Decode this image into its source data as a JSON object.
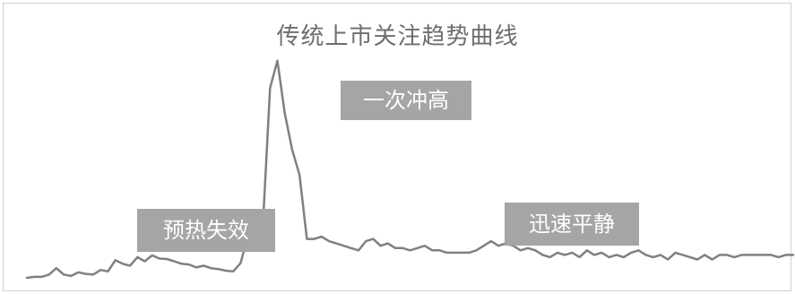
{
  "chart_data": {
    "type": "line",
    "title": "传统上市关注趋势曲线",
    "xlabel": "",
    "ylabel": "",
    "x_range": [
      0,
      104
    ],
    "ylim": [
      0,
      100
    ],
    "grid": false,
    "line_color": "#808080",
    "series": [
      {
        "values": [
          2,
          2.4,
          2.4,
          3.4,
          6.2,
          3.4,
          2.8,
          4.4,
          3.7,
          3.4,
          5.4,
          4.8,
          9.7,
          8.1,
          7.3,
          11,
          9.2,
          11.8,
          10.4,
          10.2,
          9.2,
          8.1,
          7.8,
          6.5,
          7.3,
          6.2,
          5.8,
          5.1,
          4.8,
          8.4,
          20.3,
          21.4,
          23.3,
          85,
          97,
          74,
          58,
          47,
          19,
          19,
          20,
          18,
          17,
          16,
          15,
          14,
          18,
          19,
          16,
          17,
          15,
          15,
          14,
          15,
          16,
          14,
          14,
          13,
          13,
          13,
          13,
          14,
          16,
          18,
          16,
          17,
          16,
          14,
          15,
          14,
          12,
          11,
          13,
          12,
          13,
          11,
          14,
          12,
          13,
          11,
          12,
          11,
          13,
          14,
          12,
          11,
          12,
          10,
          13,
          12,
          11,
          10,
          12,
          10,
          12,
          12,
          11,
          12,
          12,
          12,
          12,
          12,
          11,
          12,
          12
        ]
      }
    ],
    "annotations": [
      {
        "text": "预热失效",
        "x": 16.5
      },
      {
        "text": "一次冲高",
        "x": 38.5
      },
      {
        "text": "迅速平静",
        "x": 68.5
      }
    ]
  }
}
